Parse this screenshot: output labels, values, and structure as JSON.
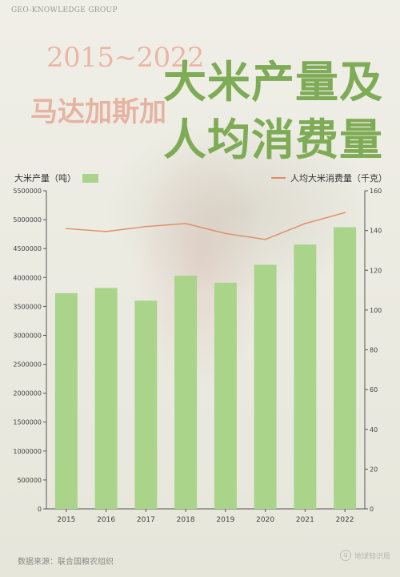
{
  "header": {
    "brand": "GEO-KNOWLEDGE GROUP",
    "years": "2015~2022",
    "country": "马达加斯加",
    "title_line1": "大米产量及",
    "title_line2": "人均消费量"
  },
  "colors": {
    "bar": "#a9d48a",
    "line": "#e08c66",
    "title_green": "#7eab55",
    "title_salmon": "#e6b3a2"
  },
  "chart_data": {
    "type": "bar",
    "categories": [
      "2015",
      "2016",
      "2017",
      "2018",
      "2019",
      "2020",
      "2021",
      "2022"
    ],
    "series": [
      {
        "name": "大米产量（吨）",
        "type": "bar",
        "axis": "left",
        "values": [
          3730000,
          3820000,
          3600000,
          4030000,
          3910000,
          4220000,
          4570000,
          4870000
        ]
      },
      {
        "name": "人均大米消费量（千克）",
        "type": "line",
        "axis": "right",
        "values": [
          141,
          139.5,
          142,
          143.5,
          138.5,
          135.5,
          143.5,
          149
        ]
      }
    ],
    "ylabel_left": "大米产量（吨）",
    "ylabel_right": "人均大米消费量（千克）",
    "ylim_left": [
      0,
      5500000
    ],
    "ylim_right": [
      0,
      160
    ],
    "yticks_left": [
      "0",
      "500000",
      "1000000",
      "1500000",
      "2000000",
      "2500000",
      "3000000",
      "3500000",
      "4000000",
      "4500000",
      "5000000",
      "5500000"
    ],
    "yticks_right": [
      "0",
      "20",
      "40",
      "60",
      "80",
      "100",
      "120",
      "140",
      "160"
    ],
    "grid": false,
    "legend": "top"
  },
  "footer": {
    "source": "数据来源：联合国粮农组织",
    "logo_text": "地球知识局",
    "logo_mark": "G"
  }
}
